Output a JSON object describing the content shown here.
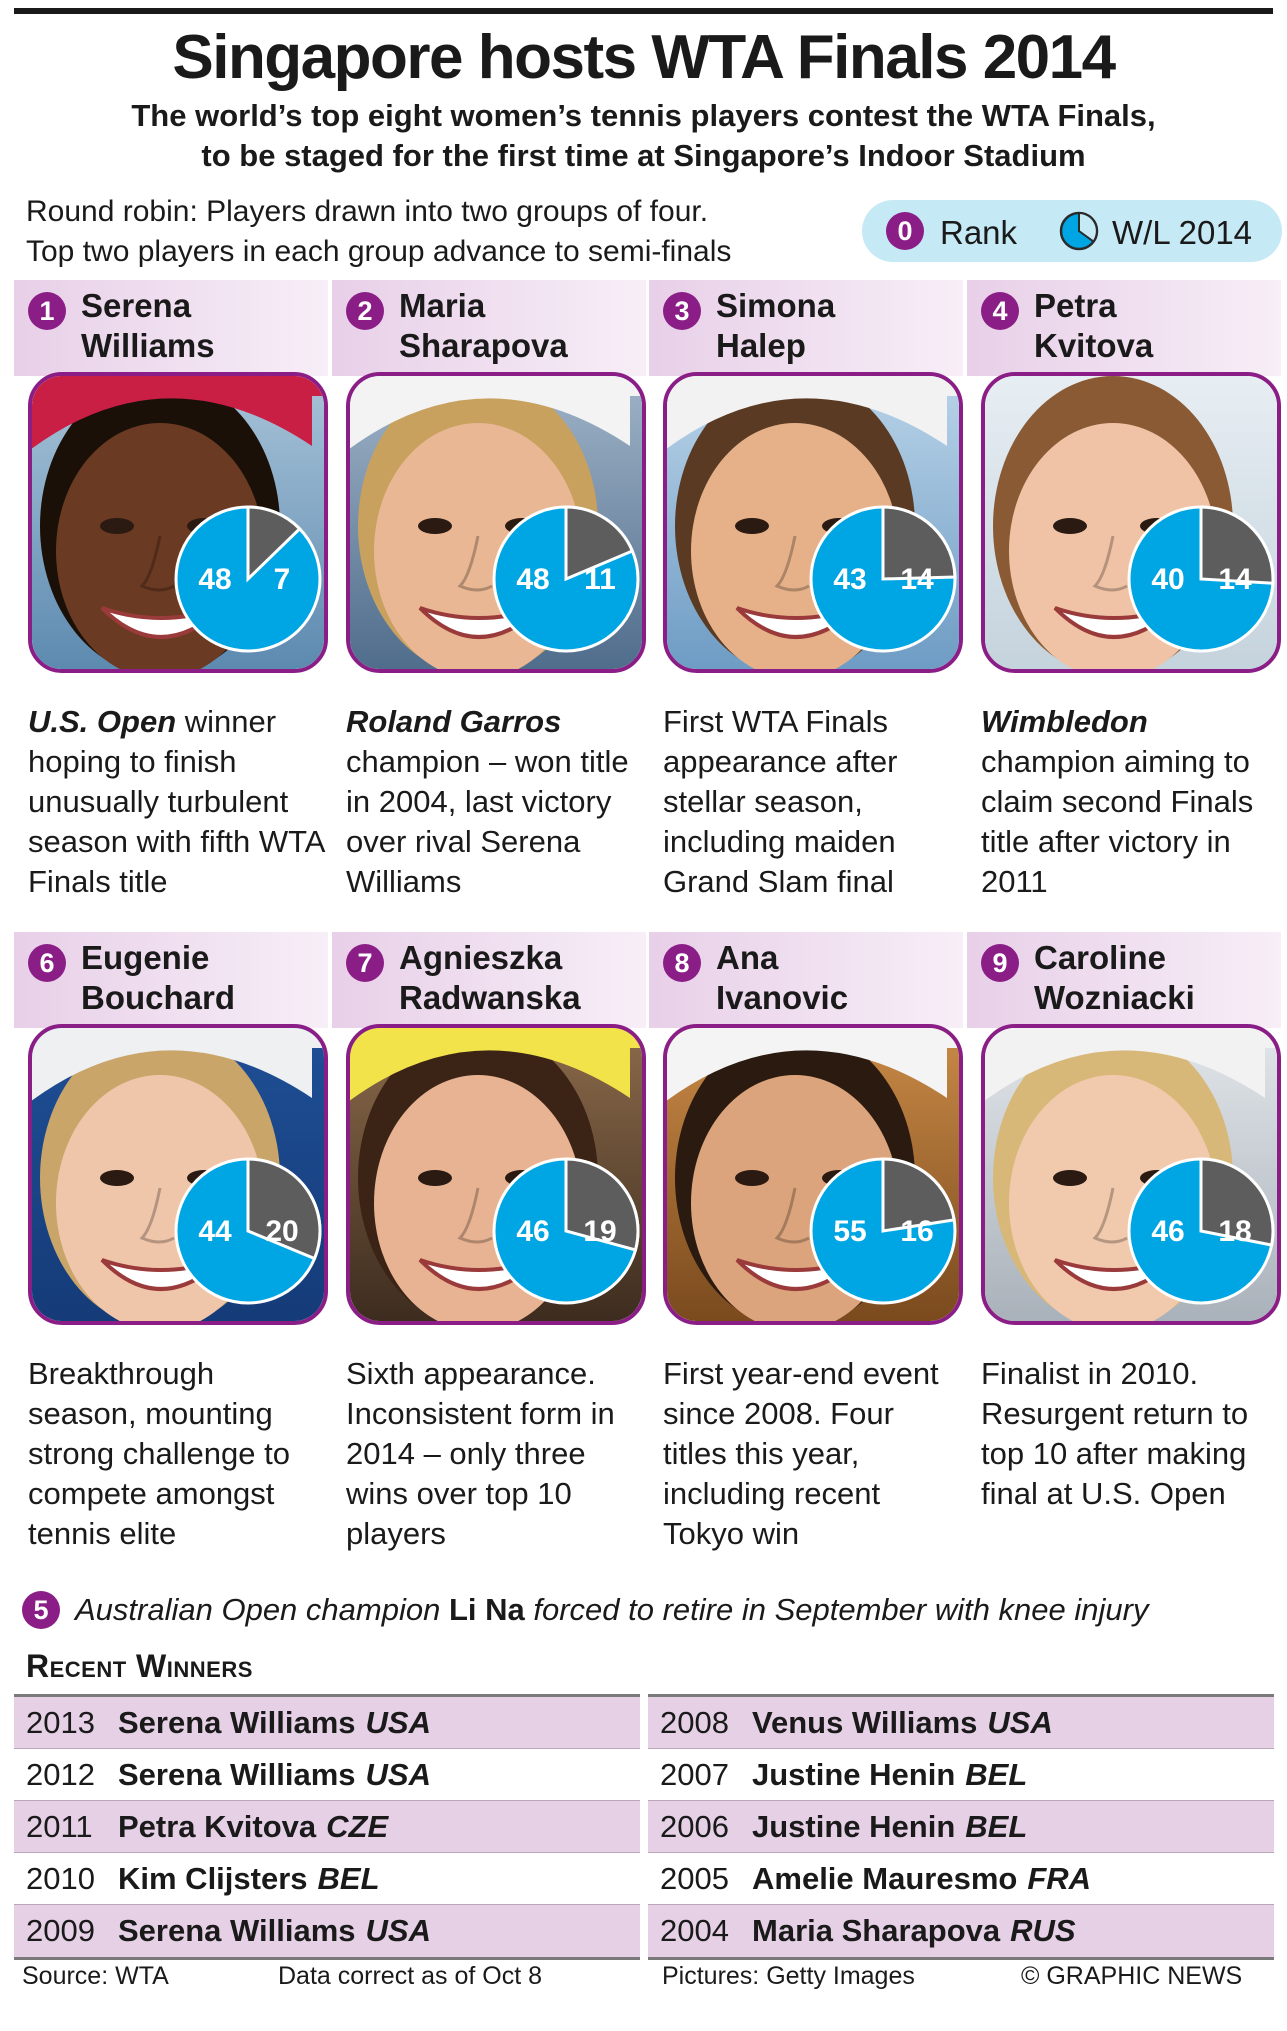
{
  "title": "Singapore hosts WTA Finals 2014",
  "subtitle_line1": "The world’s top eight women’s tennis players contest the WTA Finals,",
  "subtitle_line2": "to be staged for the first time at Singapore’s Indoor Stadium",
  "format_line1": "Round robin: Players drawn into two groups of four.",
  "format_line2": "Top two players in each group advance to semi-finals",
  "key": {
    "badge": "0",
    "rank_label": "Rank",
    "wl_label": "W/L 2014"
  },
  "colors": {
    "accent": "#8a1e86",
    "win": "#00a5e3",
    "loss": "#5d5d5d",
    "header_bg": "#e8d0e8",
    "table_shade": "#e6d0e6"
  },
  "players": [
    {
      "rank": "1",
      "first": "Serena",
      "last": "Williams",
      "wins": 48,
      "losses": 7,
      "desc_em": "U.S. Open",
      "desc": " winner hoping to finish unusually turbulent season with fifth WTA Finals title"
    },
    {
      "rank": "2",
      "first": "Maria",
      "last": "Sharapova",
      "wins": 48,
      "losses": 11,
      "desc_em": "Roland Garros",
      "desc": " champion – won title in 2004, last victory over rival Serena Williams"
    },
    {
      "rank": "3",
      "first": "Simona",
      "last": "Halep",
      "wins": 43,
      "losses": 14,
      "desc_em": "",
      "desc": "First WTA Finals appearance after stellar season, including maiden Grand Slam final"
    },
    {
      "rank": "4",
      "first": "Petra",
      "last": "Kvitova",
      "wins": 40,
      "losses": 14,
      "desc_em": "Wimbledon",
      "desc": " champion aiming to claim second Finals title after victory in 2011"
    },
    {
      "rank": "6",
      "first": "Eugenie",
      "last": "Bouchard",
      "wins": 44,
      "losses": 20,
      "desc_em": "",
      "desc": "Breakthrough season, mounting strong challenge to compete amongst tennis elite"
    },
    {
      "rank": "7",
      "first": "Agnieszka",
      "last": "Radwanska",
      "wins": 46,
      "losses": 19,
      "desc_em": "",
      "desc": "Sixth appearance. Inconsistent form in 2014 – only three wins over top 10 players"
    },
    {
      "rank": "8",
      "first": "Ana",
      "last": "Ivanovic",
      "wins": 55,
      "losses": 16,
      "desc_em": "",
      "desc": "First year-end event since 2008. Four titles this year, including recent Tokyo win"
    },
    {
      "rank": "9",
      "first": "Caroline",
      "last": "Wozniacki",
      "wins": 46,
      "losses": 18,
      "desc_em": "",
      "desc": "Finalist in 2010. Resurgent return to top 10 after making final at U.S. Open"
    }
  ],
  "footnote": {
    "badge": "5",
    "pre": "Australian Open champion ",
    "name": "Li Na",
    "post": " forced to retire in September with knee injury"
  },
  "recent_winners_title": "Recent Winners",
  "winners_left": [
    {
      "year": "2013",
      "name": "Serena Williams",
      "country": "USA"
    },
    {
      "year": "2012",
      "name": "Serena Williams",
      "country": "USA"
    },
    {
      "year": "2011",
      "name": "Petra Kvitova",
      "country": "CZE"
    },
    {
      "year": "2010",
      "name": "Kim Clijsters",
      "country": "BEL"
    },
    {
      "year": "2009",
      "name": "Serena Williams",
      "country": "USA"
    }
  ],
  "winners_right": [
    {
      "year": "2008",
      "name": "Venus Williams",
      "country": "USA"
    },
    {
      "year": "2007",
      "name": "Justine Henin",
      "country": "BEL"
    },
    {
      "year": "2006",
      "name": "Justine Henin",
      "country": "BEL"
    },
    {
      "year": "2005",
      "name": "Amelie Mauresmo",
      "country": "FRA"
    },
    {
      "year": "2004",
      "name": "Maria Sharapova",
      "country": "RUS"
    }
  ],
  "source": "Source: WTA",
  "data_note": "Data correct as of Oct 8",
  "pictures": "Pictures: Getty Images",
  "copyright": "© GRAPHIC NEWS"
}
